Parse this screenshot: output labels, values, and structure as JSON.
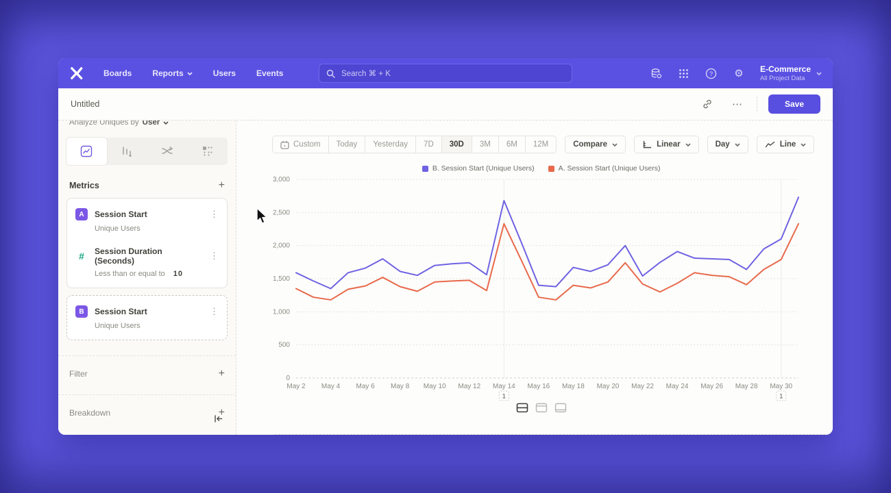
{
  "nav": {
    "items": [
      "Boards",
      "Reports",
      "Users",
      "Events"
    ],
    "search": {
      "placeholder": "Search   ⌘ + K"
    },
    "project": {
      "name": "E-Commerce",
      "subtitle": "All Project Data"
    }
  },
  "titlebar": {
    "title": "Untitled",
    "save_label": "Save"
  },
  "sidebar": {
    "analyze_label": "Analyze Uniques by",
    "analyze_value": "User",
    "metrics_header": "Metrics",
    "metric_rows": [
      {
        "badge": "A",
        "title": "Session Start",
        "subtitle": "Unique Users"
      },
      {
        "badge": "#",
        "title": "Session Duration (Seconds)",
        "subtitle": "Less than or equal to",
        "subtitle_value": "10"
      },
      {
        "badge": "B",
        "title": "Session Start",
        "subtitle": "Unique Users"
      }
    ],
    "filter_label": "Filter",
    "breakdown_label": "Breakdown"
  },
  "toolbar": {
    "ranges": [
      "Custom",
      "Today",
      "Yesterday",
      "7D",
      "30D",
      "3M",
      "6M",
      "12M"
    ],
    "active_range": "30D",
    "compare_label": "Compare",
    "scale_label": "Linear",
    "interval_label": "Day",
    "chart_type_label": "Line"
  },
  "chart_data": {
    "type": "line",
    "x": [
      "May 2",
      "May 3",
      "May 4",
      "May 5",
      "May 6",
      "May 7",
      "May 8",
      "May 9",
      "May 10",
      "May 11",
      "May 12",
      "May 13",
      "May 14",
      "May 15",
      "May 16",
      "May 17",
      "May 18",
      "May 19",
      "May 20",
      "May 21",
      "May 22",
      "May 23",
      "May 24",
      "May 25",
      "May 26",
      "May 27",
      "May 28",
      "May 29",
      "May 30",
      "May 31"
    ],
    "x_tick_step": 2,
    "series": [
      {
        "name": "B. Session Start (Unique Users)",
        "color": "#6f62e3",
        "values": [
          1590,
          1465,
          1350,
          1590,
          1660,
          1800,
          1610,
          1550,
          1700,
          1725,
          1740,
          1560,
          2680,
          2050,
          1400,
          1380,
          1670,
          1610,
          1710,
          2000,
          1540,
          1745,
          1910,
          1810,
          1800,
          1790,
          1640,
          1950,
          2100,
          2730
        ]
      },
      {
        "name": "A. Session Start (Unique Users)",
        "color": "#e8694b",
        "values": [
          1350,
          1220,
          1180,
          1340,
          1390,
          1520,
          1380,
          1310,
          1450,
          1465,
          1475,
          1320,
          2330,
          1780,
          1220,
          1180,
          1400,
          1360,
          1450,
          1740,
          1420,
          1300,
          1430,
          1590,
          1550,
          1530,
          1410,
          1640,
          1790,
          2330
        ]
      }
    ],
    "ylim": [
      0,
      3000
    ],
    "yticks": [
      0,
      500,
      1000,
      1500,
      2000,
      2500,
      3000
    ],
    "annotations": [
      {
        "x_index": 12,
        "label": "1"
      },
      {
        "x_index": 28,
        "label": "1"
      }
    ],
    "grid": "horizontal-dotted",
    "legend_position": "top-center"
  }
}
